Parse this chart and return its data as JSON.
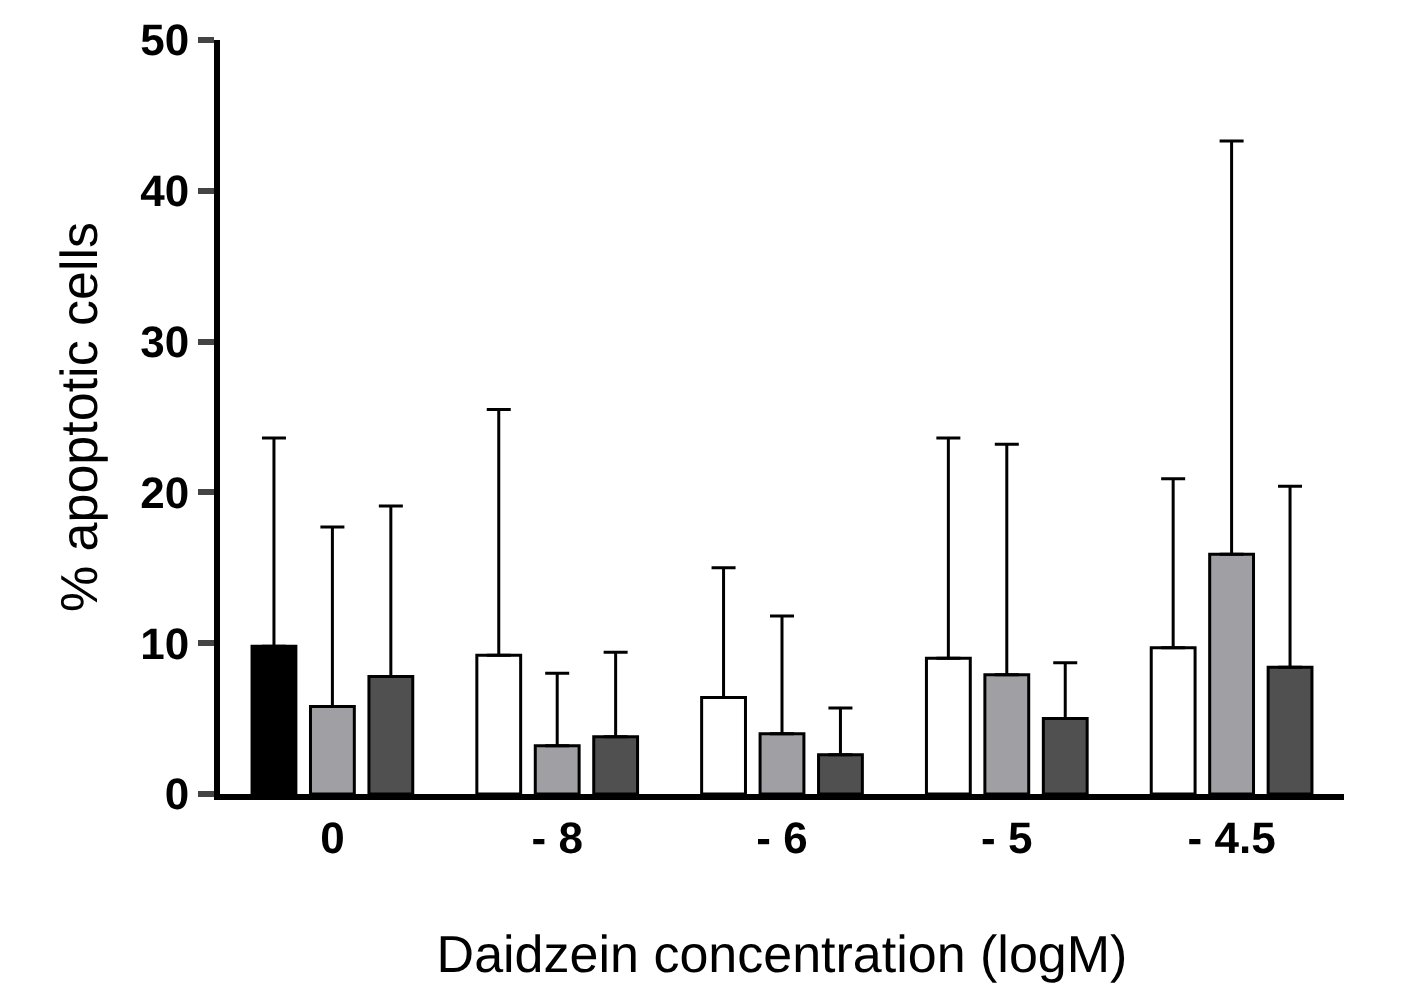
{
  "chart_data": {
    "type": "bar",
    "xlabel": "Daidzein concentration (logM)",
    "ylabel": "% apoptotic cells",
    "categories": [
      "0",
      "- 8",
      "- 6",
      "- 5",
      "- 4.5"
    ],
    "ylim": [
      0,
      50
    ],
    "yticks": [
      0,
      10,
      20,
      30,
      40,
      50
    ],
    "grid": false,
    "series": [
      {
        "colors": [
          "#000000",
          "#ffffff",
          "#ffffff",
          "#ffffff",
          "#ffffff"
        ],
        "values": [
          9.8,
          9.2,
          6.4,
          9.0,
          9.7
        ],
        "errors": [
          [
            9.8,
            23.6
          ],
          [
            9.2,
            25.5
          ],
          [
            6.4,
            15.0
          ],
          [
            9.0,
            23.6
          ],
          [
            9.7,
            20.9
          ]
        ]
      },
      {
        "color": "#a0a0a4",
        "values": [
          5.8,
          3.2,
          4.0,
          7.9,
          15.9
        ],
        "errors": [
          [
            5.8,
            17.7
          ],
          [
            3.2,
            8.0
          ],
          [
            4.0,
            11.8
          ],
          [
            7.9,
            23.2
          ],
          [
            15.9,
            43.3
          ]
        ]
      },
      {
        "color": "#505050",
        "values": [
          7.8,
          3.8,
          2.6,
          5.0,
          8.4
        ],
        "errors": [
          [
            7.8,
            19.1
          ],
          [
            3.8,
            9.4
          ],
          [
            2.6,
            5.7
          ],
          [
            5.0,
            8.7
          ],
          [
            8.4,
            20.4
          ]
        ]
      }
    ]
  }
}
